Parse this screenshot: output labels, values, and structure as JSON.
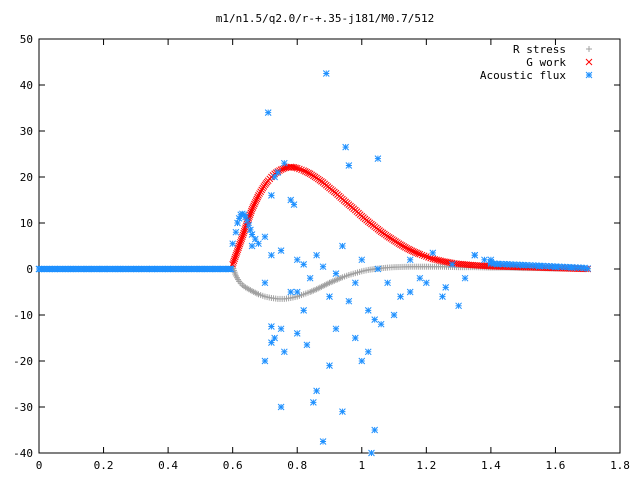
{
  "chart_data": {
    "type": "scatter",
    "title": "m1/n1.5/q2.0/r-+.35-j181/M0.7/512",
    "xlabel": "",
    "ylabel": "",
    "xlim": [
      0,
      1.8
    ],
    "ylim": [
      -40,
      50
    ],
    "x_ticks": [
      "0",
      "0.2",
      "0.4",
      "0.6",
      "0.8",
      "1",
      "1.2",
      "1.4",
      "1.6",
      "1.8"
    ],
    "y_ticks": [
      "50",
      "40",
      "30",
      "20",
      "10",
      "0",
      "-10",
      "-20",
      "-30",
      "-40"
    ],
    "grid": false,
    "legend_position": "top-right",
    "series": [
      {
        "name": "R stress",
        "marker": "+",
        "color": "#a0a0a0",
        "points": [
          [
            0.6,
            0.5
          ],
          [
            0.61,
            -1.5
          ],
          [
            0.62,
            -2.7
          ],
          [
            0.63,
            -3.5
          ],
          [
            0.64,
            -4.0
          ],
          [
            0.66,
            -4.8
          ],
          [
            0.68,
            -5.5
          ],
          [
            0.7,
            -6.0
          ],
          [
            0.72,
            -6.3
          ],
          [
            0.74,
            -6.5
          ],
          [
            0.76,
            -6.5
          ],
          [
            0.78,
            -6.3
          ],
          [
            0.8,
            -6.0
          ],
          [
            0.82,
            -5.5
          ],
          [
            0.84,
            -5.0
          ],
          [
            0.86,
            -4.4
          ],
          [
            0.88,
            -3.7
          ],
          [
            0.9,
            -3.0
          ],
          [
            0.92,
            -2.4
          ],
          [
            0.94,
            -1.8
          ],
          [
            0.96,
            -1.3
          ],
          [
            0.98,
            -0.9
          ],
          [
            1.0,
            -0.5
          ],
          [
            1.02,
            -0.2
          ],
          [
            1.05,
            0.1
          ],
          [
            1.08,
            0.3
          ],
          [
            1.1,
            0.4
          ],
          [
            1.15,
            0.5
          ],
          [
            1.2,
            0.5
          ],
          [
            1.25,
            0.5
          ],
          [
            1.3,
            0.4
          ],
          [
            1.35,
            0.4
          ],
          [
            1.4,
            0.3
          ],
          [
            1.45,
            0.3
          ],
          [
            1.5,
            0.2
          ],
          [
            1.55,
            0.2
          ],
          [
            1.6,
            0.1
          ],
          [
            1.65,
            0.1
          ],
          [
            1.7,
            0.0
          ]
        ]
      },
      {
        "name": "G work",
        "marker": "x",
        "color": "#ff0000",
        "points": [
          [
            0.6,
            1.0
          ],
          [
            0.61,
            3.0
          ],
          [
            0.62,
            5.0
          ],
          [
            0.63,
            7.0
          ],
          [
            0.64,
            9.0
          ],
          [
            0.65,
            11.0
          ],
          [
            0.66,
            13.0
          ],
          [
            0.67,
            14.5
          ],
          [
            0.68,
            16.0
          ],
          [
            0.69,
            17.2
          ],
          [
            0.7,
            18.3
          ],
          [
            0.71,
            19.2
          ],
          [
            0.72,
            20.0
          ],
          [
            0.73,
            20.7
          ],
          [
            0.74,
            21.2
          ],
          [
            0.75,
            21.6
          ],
          [
            0.76,
            21.9
          ],
          [
            0.77,
            22.1
          ],
          [
            0.78,
            22.2
          ],
          [
            0.79,
            22.1
          ],
          [
            0.8,
            21.9
          ],
          [
            0.82,
            21.4
          ],
          [
            0.84,
            20.7
          ],
          [
            0.86,
            19.8
          ],
          [
            0.88,
            18.8
          ],
          [
            0.9,
            17.6
          ],
          [
            0.92,
            16.5
          ],
          [
            0.94,
            15.2
          ],
          [
            0.96,
            14.0
          ],
          [
            0.98,
            12.8
          ],
          [
            1.0,
            11.5
          ],
          [
            1.02,
            10.3
          ],
          [
            1.04,
            9.2
          ],
          [
            1.06,
            8.1
          ],
          [
            1.08,
            7.1
          ],
          [
            1.1,
            6.2
          ],
          [
            1.12,
            5.3
          ],
          [
            1.14,
            4.5
          ],
          [
            1.16,
            3.8
          ],
          [
            1.18,
            3.2
          ],
          [
            1.2,
            2.7
          ],
          [
            1.22,
            2.2
          ],
          [
            1.25,
            1.7
          ],
          [
            1.28,
            1.3
          ],
          [
            1.3,
            1.1
          ],
          [
            1.35,
            0.8
          ],
          [
            1.4,
            0.6
          ],
          [
            1.45,
            0.5
          ],
          [
            1.5,
            0.4
          ],
          [
            1.55,
            0.3
          ],
          [
            1.6,
            0.2
          ],
          [
            1.65,
            0.1
          ],
          [
            1.7,
            0.0
          ]
        ]
      },
      {
        "name": "Acoustic flux",
        "marker": "*",
        "color": "#1e90ff",
        "points": [
          [
            0.0,
            0.0
          ],
          [
            0.05,
            0.0
          ],
          [
            0.1,
            0.0
          ],
          [
            0.15,
            0.0
          ],
          [
            0.2,
            0.0
          ],
          [
            0.25,
            0.0
          ],
          [
            0.3,
            0.0
          ],
          [
            0.35,
            0.0
          ],
          [
            0.4,
            0.0
          ],
          [
            0.45,
            0.0
          ],
          [
            0.5,
            0.0
          ],
          [
            0.55,
            0.0
          ],
          [
            0.59,
            0.0
          ],
          [
            0.6,
            5.5
          ],
          [
            0.61,
            8.0
          ],
          [
            0.615,
            10.0
          ],
          [
            0.62,
            11.0
          ],
          [
            0.625,
            11.8
          ],
          [
            0.63,
            12.0
          ],
          [
            0.635,
            11.8
          ],
          [
            0.64,
            11.3
          ],
          [
            0.645,
            10.5
          ],
          [
            0.65,
            9.5
          ],
          [
            0.655,
            8.5
          ],
          [
            0.66,
            7.5
          ],
          [
            0.67,
            6.5
          ],
          [
            0.68,
            5.5
          ],
          [
            0.7,
            7.0
          ],
          [
            0.71,
            34.0
          ],
          [
            0.72,
            16.0
          ],
          [
            0.73,
            20.0
          ],
          [
            0.74,
            21.0
          ],
          [
            0.75,
            -30.0
          ],
          [
            0.76,
            23.0
          ],
          [
            0.78,
            15.0
          ],
          [
            0.79,
            14.0
          ],
          [
            0.8,
            -5.0
          ],
          [
            0.72,
            -16.0
          ],
          [
            0.7,
            -20.0
          ],
          [
            0.72,
            -12.5
          ],
          [
            0.73,
            -15.0
          ],
          [
            0.75,
            -13.0
          ],
          [
            0.76,
            -18.0
          ],
          [
            0.8,
            -14.0
          ],
          [
            0.82,
            -9.0
          ],
          [
            0.83,
            -16.5
          ],
          [
            0.85,
            -29.0
          ],
          [
            0.86,
            -26.5
          ],
          [
            0.88,
            -37.5
          ],
          [
            0.89,
            42.5
          ],
          [
            0.9,
            -21.0
          ],
          [
            0.92,
            -13.0
          ],
          [
            0.94,
            -31.0
          ],
          [
            0.95,
            26.5
          ],
          [
            0.96,
            22.5
          ],
          [
            0.98,
            -15.0
          ],
          [
            1.0,
            -20.0
          ],
          [
            1.02,
            -18.0
          ],
          [
            1.03,
            -40.0
          ],
          [
            1.04,
            -35.0
          ],
          [
            1.05,
            24.0
          ],
          [
            1.06,
            -12.0
          ],
          [
            1.1,
            -10.0
          ],
          [
            1.15,
            -5.0
          ],
          [
            1.2,
            -3.0
          ],
          [
            1.25,
            -6.0
          ],
          [
            1.3,
            -8.0
          ],
          [
            1.35,
            3.0
          ],
          [
            1.4,
            2.0
          ],
          [
            0.66,
            5.0
          ],
          [
            0.7,
            -3.0
          ],
          [
            0.72,
            3.0
          ],
          [
            0.75,
            4.0
          ],
          [
            0.78,
            -5.0
          ],
          [
            0.8,
            2.0
          ],
          [
            0.82,
            1.0
          ],
          [
            0.84,
            -2.0
          ],
          [
            0.86,
            3.0
          ],
          [
            0.88,
            0.5
          ],
          [
            0.9,
            -6.0
          ],
          [
            0.92,
            -1.0
          ],
          [
            0.94,
            5.0
          ],
          [
            0.96,
            -7.0
          ],
          [
            0.98,
            -3.0
          ],
          [
            1.0,
            2.0
          ],
          [
            1.02,
            -9.0
          ],
          [
            1.04,
            -11.0
          ],
          [
            1.05,
            0.0
          ],
          [
            1.08,
            -3.0
          ],
          [
            1.12,
            -6.0
          ],
          [
            1.15,
            2.0
          ],
          [
            1.18,
            -2.0
          ],
          [
            1.22,
            3.5
          ],
          [
            1.26,
            -4.0
          ],
          [
            1.28,
            1.0
          ],
          [
            1.32,
            -2.0
          ],
          [
            1.35,
            3.0
          ],
          [
            1.38,
            2.0
          ],
          [
            1.4,
            1.5
          ],
          [
            1.42,
            1.0
          ],
          [
            1.45,
            1.0
          ],
          [
            1.5,
            0.8
          ],
          [
            1.55,
            0.6
          ],
          [
            1.6,
            0.4
          ],
          [
            1.65,
            0.3
          ],
          [
            1.7,
            0.1
          ]
        ]
      }
    ]
  }
}
